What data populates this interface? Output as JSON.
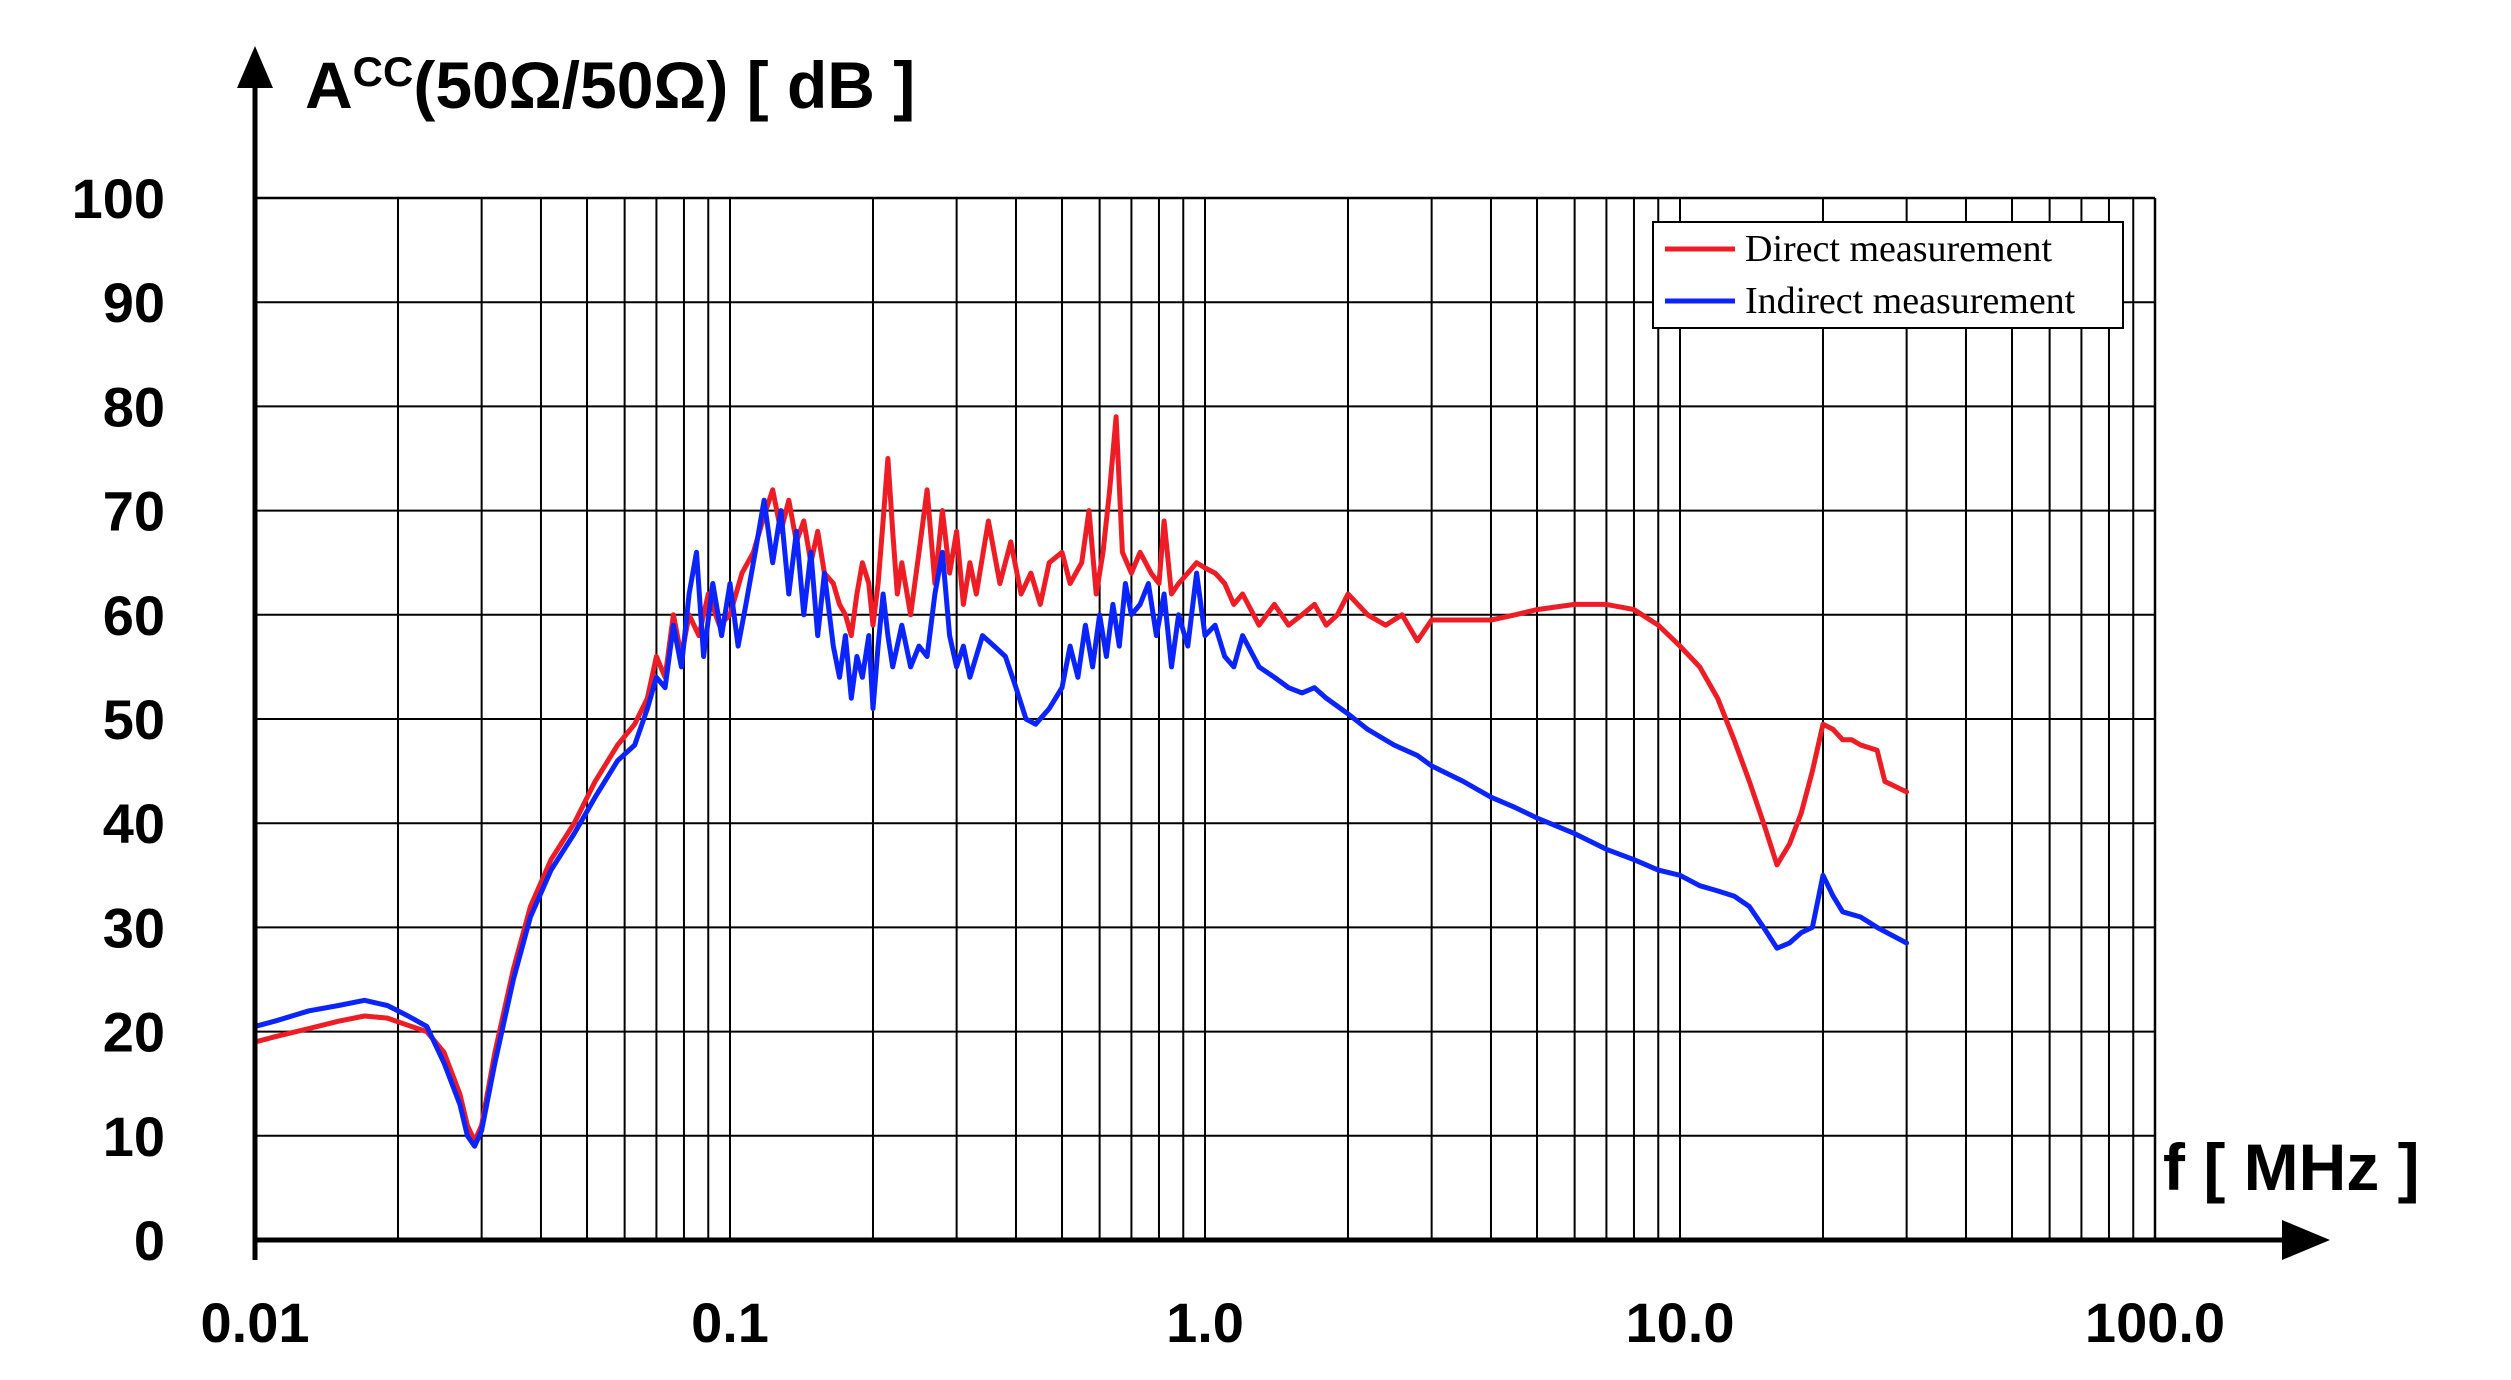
{
  "chart_data": {
    "type": "line",
    "y_axis": {
      "label_main": "A",
      "label_super": "CC",
      "label_rest": "(50Ω/50Ω) [ dB ]",
      "ticks": [
        "0",
        "10",
        "20",
        "30",
        "40",
        "50",
        "60",
        "70",
        "80",
        "90",
        "100"
      ],
      "range": [
        0,
        100
      ]
    },
    "x_axis": {
      "label": "f [ MHz ]",
      "scale": "log",
      "ticks": [
        "0.01",
        "0.1",
        "1.0",
        "10.0",
        "100.0"
      ],
      "range": [
        0.01,
        100
      ]
    },
    "grid": true,
    "legend_position": "top-right",
    "colors": {
      "direct": "#ee1c24",
      "indirect": "#0b24fb",
      "grid": "#000000"
    },
    "series": [
      {
        "name": "Direct measurement",
        "color": "#ee1c24",
        "points": [
          [
            0.01,
            19
          ],
          [
            0.011,
            19.5
          ],
          [
            0.013,
            20.3
          ],
          [
            0.015,
            21
          ],
          [
            0.017,
            21.5
          ],
          [
            0.019,
            21.3
          ],
          [
            0.021,
            20.6
          ],
          [
            0.023,
            20
          ],
          [
            0.025,
            18
          ],
          [
            0.027,
            14
          ],
          [
            0.028,
            11
          ],
          [
            0.029,
            9.5
          ],
          [
            0.03,
            11
          ],
          [
            0.032,
            18
          ],
          [
            0.035,
            26
          ],
          [
            0.038,
            32
          ],
          [
            0.042,
            36.5
          ],
          [
            0.047,
            40
          ],
          [
            0.052,
            44
          ],
          [
            0.058,
            47.5
          ],
          [
            0.063,
            49.5
          ],
          [
            0.067,
            52
          ],
          [
            0.07,
            56
          ],
          [
            0.073,
            54
          ],
          [
            0.076,
            60
          ],
          [
            0.079,
            56
          ],
          [
            0.082,
            60
          ],
          [
            0.086,
            58
          ],
          [
            0.09,
            62
          ],
          [
            0.095,
            59
          ],
          [
            0.1,
            60
          ],
          [
            0.106,
            64
          ],
          [
            0.112,
            66
          ],
          [
            0.118,
            69.5
          ],
          [
            0.123,
            72
          ],
          [
            0.128,
            68
          ],
          [
            0.133,
            71
          ],
          [
            0.138,
            67
          ],
          [
            0.143,
            69
          ],
          [
            0.148,
            65
          ],
          [
            0.153,
            68
          ],
          [
            0.158,
            64
          ],
          [
            0.165,
            63
          ],
          [
            0.17,
            61
          ],
          [
            0.175,
            60
          ],
          [
            0.18,
            58
          ],
          [
            0.185,
            62
          ],
          [
            0.19,
            65
          ],
          [
            0.196,
            63
          ],
          [
            0.2,
            59
          ],
          [
            0.205,
            63
          ],
          [
            0.21,
            69
          ],
          [
            0.215,
            75
          ],
          [
            0.22,
            68
          ],
          [
            0.225,
            62
          ],
          [
            0.23,
            65
          ],
          [
            0.24,
            60
          ],
          [
            0.25,
            66
          ],
          [
            0.26,
            72
          ],
          [
            0.27,
            63
          ],
          [
            0.28,
            70
          ],
          [
            0.29,
            64
          ],
          [
            0.3,
            68
          ],
          [
            0.31,
            61
          ],
          [
            0.32,
            65
          ],
          [
            0.33,
            62
          ],
          [
            0.35,
            69
          ],
          [
            0.37,
            63
          ],
          [
            0.39,
            67
          ],
          [
            0.41,
            62
          ],
          [
            0.43,
            64
          ],
          [
            0.45,
            61
          ],
          [
            0.47,
            65
          ],
          [
            0.5,
            66
          ],
          [
            0.52,
            63
          ],
          [
            0.55,
            65
          ],
          [
            0.57,
            70
          ],
          [
            0.59,
            62
          ],
          [
            0.61,
            66
          ],
          [
            0.63,
            72
          ],
          [
            0.65,
            79
          ],
          [
            0.67,
            66
          ],
          [
            0.7,
            64
          ],
          [
            0.73,
            66
          ],
          [
            0.77,
            64
          ],
          [
            0.8,
            63
          ],
          [
            0.82,
            69
          ],
          [
            0.85,
            62
          ],
          [
            0.88,
            63
          ],
          [
            0.92,
            64
          ],
          [
            0.96,
            65
          ],
          [
            1.0,
            64.5
          ],
          [
            1.05,
            64
          ],
          [
            1.1,
            63
          ],
          [
            1.15,
            61
          ],
          [
            1.2,
            62
          ],
          [
            1.3,
            59
          ],
          [
            1.4,
            61
          ],
          [
            1.5,
            59
          ],
          [
            1.6,
            60
          ],
          [
            1.7,
            61
          ],
          [
            1.8,
            59
          ],
          [
            1.9,
            60
          ],
          [
            2.0,
            62
          ],
          [
            2.2,
            60
          ],
          [
            2.4,
            59
          ],
          [
            2.6,
            60
          ],
          [
            2.8,
            57.5
          ],
          [
            3.0,
            59.5
          ],
          [
            3.5,
            59.5
          ],
          [
            4.0,
            59.5
          ],
          [
            4.5,
            60
          ],
          [
            5.0,
            60.5
          ],
          [
            6.0,
            61
          ],
          [
            7.0,
            61
          ],
          [
            8.0,
            60.5
          ],
          [
            9.0,
            59
          ],
          [
            10.0,
            57
          ],
          [
            11.0,
            55
          ],
          [
            12.0,
            52
          ],
          [
            13.0,
            48
          ],
          [
            14.0,
            44
          ],
          [
            15.0,
            40
          ],
          [
            16.0,
            36
          ],
          [
            17.0,
            38
          ],
          [
            18.0,
            41
          ],
          [
            19.0,
            45
          ],
          [
            20.0,
            49.5
          ],
          [
            21.0,
            49
          ],
          [
            22.0,
            48
          ],
          [
            23.0,
            48
          ],
          [
            24.0,
            47.5
          ],
          [
            26.0,
            47
          ],
          [
            27.0,
            44
          ],
          [
            30.0,
            43
          ]
        ]
      },
      {
        "name": "Indirect measurement",
        "color": "#0b24fb",
        "points": [
          [
            0.01,
            20.5
          ],
          [
            0.011,
            21
          ],
          [
            0.013,
            22
          ],
          [
            0.015,
            22.5
          ],
          [
            0.017,
            23
          ],
          [
            0.019,
            22.5
          ],
          [
            0.021,
            21.5
          ],
          [
            0.023,
            20.5
          ],
          [
            0.025,
            17
          ],
          [
            0.027,
            13
          ],
          [
            0.028,
            10
          ],
          [
            0.029,
            9
          ],
          [
            0.03,
            10.5
          ],
          [
            0.032,
            17
          ],
          [
            0.035,
            25
          ],
          [
            0.038,
            31
          ],
          [
            0.042,
            35.5
          ],
          [
            0.047,
            39
          ],
          [
            0.052,
            42.5
          ],
          [
            0.058,
            46
          ],
          [
            0.063,
            47.5
          ],
          [
            0.067,
            51
          ],
          [
            0.07,
            54
          ],
          [
            0.073,
            53
          ],
          [
            0.076,
            59
          ],
          [
            0.079,
            55
          ],
          [
            0.082,
            62
          ],
          [
            0.085,
            66
          ],
          [
            0.088,
            56
          ],
          [
            0.092,
            63
          ],
          [
            0.096,
            58
          ],
          [
            0.1,
            63
          ],
          [
            0.104,
            57
          ],
          [
            0.108,
            61
          ],
          [
            0.113,
            66
          ],
          [
            0.118,
            71
          ],
          [
            0.123,
            65
          ],
          [
            0.128,
            70
          ],
          [
            0.133,
            62
          ],
          [
            0.138,
            68
          ],
          [
            0.143,
            60
          ],
          [
            0.148,
            66
          ],
          [
            0.153,
            58
          ],
          [
            0.158,
            64
          ],
          [
            0.165,
            57
          ],
          [
            0.17,
            54
          ],
          [
            0.175,
            58
          ],
          [
            0.18,
            52
          ],
          [
            0.185,
            56
          ],
          [
            0.19,
            54
          ],
          [
            0.196,
            58
          ],
          [
            0.2,
            51
          ],
          [
            0.205,
            57
          ],
          [
            0.21,
            62
          ],
          [
            0.215,
            58
          ],
          [
            0.22,
            55
          ],
          [
            0.23,
            59
          ],
          [
            0.24,
            55
          ],
          [
            0.25,
            57
          ],
          [
            0.26,
            56
          ],
          [
            0.27,
            62
          ],
          [
            0.28,
            66
          ],
          [
            0.29,
            58
          ],
          [
            0.3,
            55
          ],
          [
            0.31,
            57
          ],
          [
            0.32,
            54
          ],
          [
            0.34,
            58
          ],
          [
            0.36,
            57
          ],
          [
            0.38,
            56
          ],
          [
            0.4,
            53
          ],
          [
            0.42,
            50
          ],
          [
            0.44,
            49.5
          ],
          [
            0.47,
            51
          ],
          [
            0.5,
            53
          ],
          [
            0.52,
            57
          ],
          [
            0.54,
            54
          ],
          [
            0.56,
            59
          ],
          [
            0.58,
            55
          ],
          [
            0.6,
            60
          ],
          [
            0.62,
            56
          ],
          [
            0.64,
            61
          ],
          [
            0.66,
            57
          ],
          [
            0.68,
            63
          ],
          [
            0.7,
            60
          ],
          [
            0.73,
            61
          ],
          [
            0.76,
            63
          ],
          [
            0.79,
            58
          ],
          [
            0.82,
            62
          ],
          [
            0.85,
            55
          ],
          [
            0.88,
            60
          ],
          [
            0.92,
            57
          ],
          [
            0.96,
            64
          ],
          [
            1.0,
            58
          ],
          [
            1.05,
            59
          ],
          [
            1.1,
            56
          ],
          [
            1.15,
            55
          ],
          [
            1.2,
            58
          ],
          [
            1.3,
            55
          ],
          [
            1.4,
            54
          ],
          [
            1.5,
            53
          ],
          [
            1.6,
            52.5
          ],
          [
            1.7,
            53
          ],
          [
            1.8,
            52
          ],
          [
            2.0,
            50.5
          ],
          [
            2.2,
            49
          ],
          [
            2.5,
            47.5
          ],
          [
            2.8,
            46.5
          ],
          [
            3.0,
            45.5
          ],
          [
            3.5,
            44
          ],
          [
            4.0,
            42.5
          ],
          [
            4.5,
            41.5
          ],
          [
            5.0,
            40.5
          ],
          [
            6.0,
            39
          ],
          [
            7.0,
            37.5
          ],
          [
            8.0,
            36.5
          ],
          [
            9.0,
            35.5
          ],
          [
            10.0,
            35
          ],
          [
            11.0,
            34
          ],
          [
            12.0,
            33.5
          ],
          [
            13.0,
            33
          ],
          [
            14.0,
            32
          ],
          [
            15.0,
            30
          ],
          [
            16.0,
            28
          ],
          [
            17.0,
            28.5
          ],
          [
            18.0,
            29.5
          ],
          [
            19.0,
            30
          ],
          [
            20.0,
            35
          ],
          [
            21.0,
            33
          ],
          [
            22.0,
            31.5
          ],
          [
            24.0,
            31
          ],
          [
            26.0,
            30
          ],
          [
            30.0,
            28.5
          ]
        ]
      }
    ]
  }
}
